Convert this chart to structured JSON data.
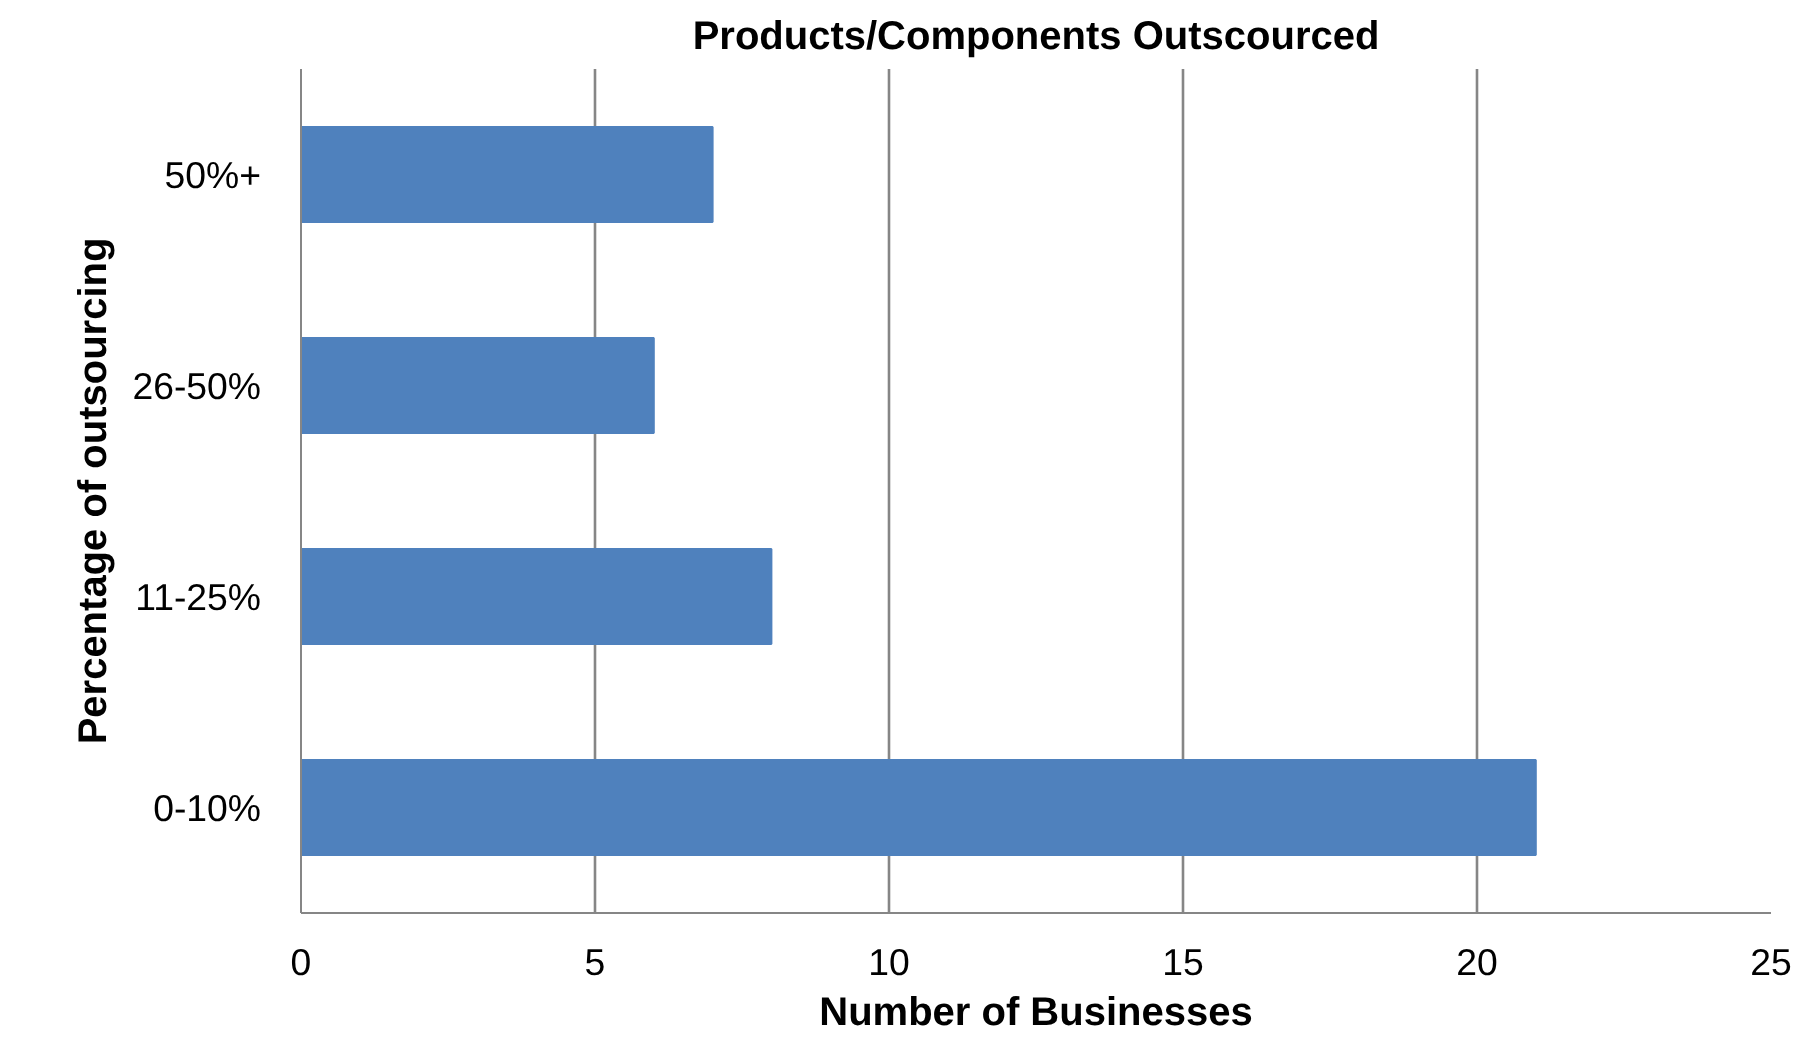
{
  "chart_data": {
    "type": "bar",
    "orientation": "horizontal",
    "title": "Products/Components Outscourced",
    "xlabel": "Number of Businesses",
    "ylabel": "Percentage of outsourcing",
    "categories": [
      "50%+",
      "26-50%",
      "11-25%",
      "0-10%"
    ],
    "values": [
      7,
      6,
      8,
      21
    ],
    "color": "#4f81bd",
    "xlim": [
      0,
      25
    ],
    "xticks": [
      0,
      5,
      10,
      15,
      20,
      25
    ],
    "grid": "x"
  }
}
